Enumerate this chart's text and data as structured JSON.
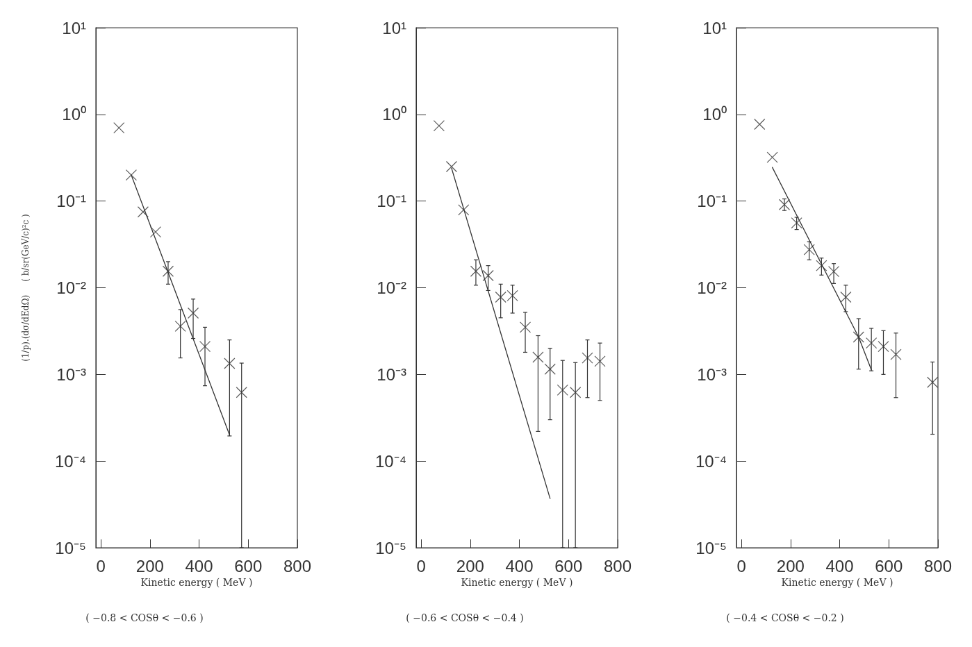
{
  "chart_data": [
    {
      "type": "scatter",
      "ylabel": "(1/p).(dσ/dEdΩ)     ( b/sr(GeV/c)²c )",
      "xlabel": "Kinetic energy ( MeV )",
      "subtitle": "( −0.8 < COSθ < −0.6 )",
      "log": "y",
      "marker": "cross",
      "grid": false,
      "xlim": [
        -20,
        800
      ],
      "xticks": [
        0,
        200,
        400,
        600,
        800
      ],
      "ylim": [
        1e-05,
        10
      ],
      "yticks": [
        {
          "value": 1e-05,
          "label": "10⁻⁵"
        },
        {
          "value": 0.0001,
          "label": "10⁻⁴"
        },
        {
          "value": 0.001,
          "label": "10⁻³"
        },
        {
          "value": 0.01,
          "label": "10⁻²"
        },
        {
          "value": 0.1,
          "label": "10⁻¹"
        },
        {
          "value": 1,
          "label": "10⁰"
        },
        {
          "value": 10,
          "label": "10¹"
        }
      ],
      "series": [
        {
          "color": "#333333",
          "x": [
            74,
            124,
            172,
            223,
            274,
            324,
            376,
            424,
            524,
            573
          ],
          "values": [
            0.7,
            0.2,
            0.075,
            0.044,
            0.0155,
            0.0036,
            0.0051,
            0.0021,
            0.00134,
            0.00062
          ],
          "errors": [
            null,
            null,
            null,
            null,
            [
              0.011,
              0.02
            ],
            [
              0.00155,
              0.0056
            ],
            [
              0.0026,
              0.0074
            ],
            [
              0.00074,
              0.0035
            ],
            [
              0.000195,
              0.0025
            ],
            [
              1e-05,
              0.00135
            ]
          ]
        },
        {
          "type": "line",
          "marker": "none",
          "color": "#333333",
          "x": [
            124,
            524
          ],
          "values": [
            0.2,
            0.0002
          ]
        }
      ]
    },
    {
      "type": "scatter",
      "xlabel": "Kinetic energy ( MeV )",
      "subtitle": "( −0.6 < COSθ < −0.4 )",
      "log": "y",
      "marker": "cross",
      "grid": false,
      "xlim": [
        -20,
        800
      ],
      "xticks": [
        0,
        200,
        400,
        600,
        800
      ],
      "ylim": [
        1e-05,
        10
      ],
      "yticks": [
        {
          "value": 1e-05,
          "label": "10⁻⁵"
        },
        {
          "value": 0.0001,
          "label": "10⁻⁴"
        },
        {
          "value": 0.001,
          "label": "10⁻³"
        },
        {
          "value": 0.01,
          "label": "10⁻²"
        },
        {
          "value": 0.1,
          "label": "10⁻¹"
        },
        {
          "value": 1,
          "label": "10⁰"
        },
        {
          "value": 10,
          "label": "10¹"
        }
      ],
      "series": [
        {
          "color": "#333333",
          "x": [
            73,
            124,
            173,
            223,
            273,
            324,
            372,
            424,
            476,
            525,
            576,
            628,
            677,
            728
          ],
          "values": [
            0.74,
            0.25,
            0.079,
            0.0155,
            0.0138,
            0.0078,
            0.0081,
            0.0035,
            0.00158,
            0.00115,
            0.00066,
            0.00062,
            0.00155,
            0.00142
          ],
          "errors": [
            null,
            null,
            null,
            [
              0.0107,
              0.021
            ],
            [
              0.0093,
              0.018
            ],
            [
              0.0045,
              0.011
            ],
            [
              0.0051,
              0.0107
            ],
            [
              0.0018,
              0.0052
            ],
            [
              0.00022,
              0.0028
            ],
            [
              0.0003,
              0.002
            ],
            [
              1e-05,
              0.00145
            ],
            [
              1e-05,
              0.00137
            ],
            [
              0.00054,
              0.0025
            ],
            [
              0.0005,
              0.0023
            ]
          ]
        },
        {
          "type": "line",
          "marker": "none",
          "color": "#333333",
          "x": [
            124,
            525
          ],
          "values": [
            0.24,
            3.7e-05
          ]
        }
      ]
    },
    {
      "type": "scatter",
      "xlabel": "Kinetic energy ( MeV )",
      "subtitle": "( −0.4 < COSθ < −0.2 )",
      "log": "y",
      "marker": "cross",
      "grid": false,
      "xlim": [
        -20,
        800
      ],
      "xticks": [
        0,
        200,
        400,
        600,
        800
      ],
      "ylim": [
        1e-05,
        10
      ],
      "yticks": [
        {
          "value": 1e-05,
          "label": "10⁻⁵"
        },
        {
          "value": 0.0001,
          "label": "10⁻⁴"
        },
        {
          "value": 0.001,
          "label": "10⁻³"
        },
        {
          "value": 0.01,
          "label": "10⁻²"
        },
        {
          "value": 0.1,
          "label": "10⁻¹"
        },
        {
          "value": 1,
          "label": "10⁰"
        },
        {
          "value": 10,
          "label": "10¹"
        }
      ],
      "series": [
        {
          "color": "#333333",
          "x": [
            74,
            126,
            175,
            225,
            276,
            326,
            376,
            425,
            477,
            529,
            578,
            629,
            778
          ],
          "values": [
            0.77,
            0.32,
            0.091,
            0.056,
            0.0275,
            0.018,
            0.0154,
            0.0078,
            0.0027,
            0.0023,
            0.0021,
            0.0017,
            0.00081
          ],
          "errors": [
            null,
            null,
            [
              0.078,
              0.106
            ],
            [
              0.047,
              0.065
            ],
            [
              0.021,
              0.034
            ],
            [
              0.014,
              0.022
            ],
            [
              0.0112,
              0.019
            ],
            [
              0.0053,
              0.0107
            ],
            [
              0.00115,
              0.0044
            ],
            [
              0.0011,
              0.0034
            ],
            [
              0.001,
              0.0032
            ],
            [
              0.00054,
              0.003
            ],
            [
              0.000204,
              0.00139
            ]
          ]
        },
        {
          "type": "line",
          "marker": "none",
          "color": "#333333",
          "x": [
            126,
            477,
            529
          ],
          "values": [
            0.245,
            0.0027,
            0.00113
          ]
        }
      ]
    }
  ]
}
